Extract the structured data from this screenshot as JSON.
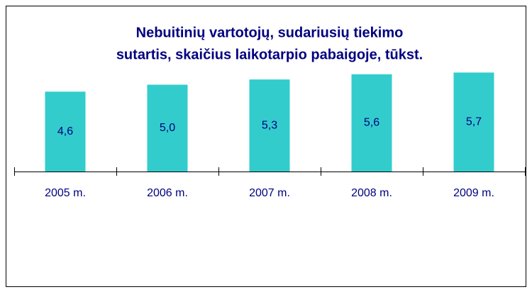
{
  "chart_data": {
    "type": "bar",
    "title": [
      "Nebuitinių vartotojų, sudariusių tiekimo",
      "sutartis, skaičius laikotarpio pabaigoje, tūkst."
    ],
    "categories": [
      "2005 m.",
      "2006 m.",
      "2007 m.",
      "2008 m.",
      "2009 m."
    ],
    "values": [
      4.6,
      5.0,
      5.3,
      5.6,
      5.7
    ],
    "value_labels": [
      "4,6",
      "5,0",
      "5,3",
      "5,6",
      "5,7"
    ],
    "color": "#33cccc"
  }
}
